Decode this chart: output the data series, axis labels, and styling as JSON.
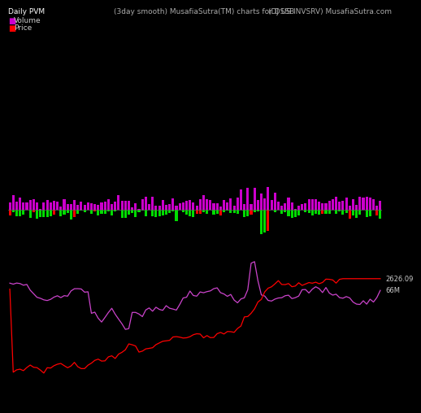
{
  "title_left": "Daily PVM",
  "title_center": "(3day smooth) MusafiaSutra(TM) charts for DSSB",
  "title_right": "(DJ US INVSRV) MusafiaSutra.com",
  "legend_volume_color": "#cc00cc",
  "legend_price_color": "#ff0000",
  "background_color": "#000000",
  "n_bars": 110,
  "volume_label": "66M",
  "price_label": "2626.09",
  "label_color": "#cccccc",
  "volume_line_color": "#cc44cc",
  "price_line_color": "#ff0000",
  "title_fontsize": 6.5,
  "legend_fontsize": 6.5
}
